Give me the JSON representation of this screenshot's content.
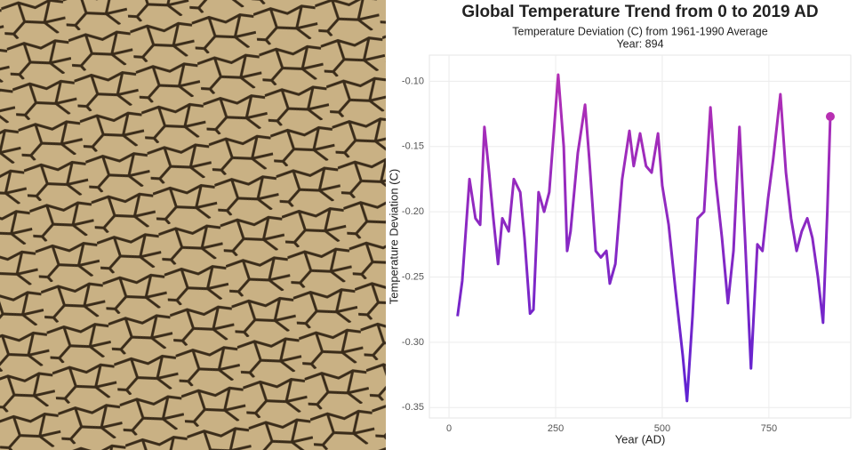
{
  "chart_data": {
    "type": "line",
    "title": "Global Temperature Trend from 0 to 2019 AD",
    "subtitle": "Temperature Deviation (C) from 1961-1990 Average",
    "annotation": "Year:  894",
    "xlabel": "Year (AD)",
    "ylabel": "Temperature Deviation (C)",
    "x": [
      20,
      31,
      48,
      62,
      73,
      83,
      94,
      104,
      115,
      125,
      140,
      152,
      167,
      177,
      190,
      198,
      210,
      223,
      235,
      256,
      269,
      277,
      285,
      302,
      319,
      329,
      344,
      356,
      369,
      377,
      390,
      406,
      423,
      433,
      448,
      462,
      475,
      490,
      500,
      515,
      531,
      548,
      558,
      571,
      583,
      598,
      613,
      625,
      640,
      654,
      667,
      681,
      694,
      708,
      723,
      735,
      748,
      760,
      777,
      790,
      802,
      815,
      827,
      840,
      852,
      865,
      877,
      887,
      894
    ],
    "values": [
      -0.28,
      -0.253,
      -0.175,
      -0.205,
      -0.21,
      -0.135,
      -0.17,
      -0.205,
      -0.24,
      -0.205,
      -0.215,
      -0.175,
      -0.185,
      -0.22,
      -0.278,
      -0.275,
      -0.185,
      -0.2,
      -0.185,
      -0.095,
      -0.15,
      -0.23,
      -0.215,
      -0.155,
      -0.118,
      -0.16,
      -0.23,
      -0.235,
      -0.23,
      -0.255,
      -0.24,
      -0.175,
      -0.138,
      -0.165,
      -0.14,
      -0.165,
      -0.17,
      -0.14,
      -0.18,
      -0.21,
      -0.26,
      -0.31,
      -0.345,
      -0.28,
      -0.205,
      -0.2,
      -0.12,
      -0.175,
      -0.22,
      -0.27,
      -0.23,
      -0.135,
      -0.22,
      -0.32,
      -0.225,
      -0.23,
      -0.19,
      -0.16,
      -0.11,
      -0.17,
      -0.205,
      -0.23,
      -0.215,
      -0.205,
      -0.22,
      -0.25,
      -0.285,
      -0.2,
      -0.127
    ],
    "gradient": [
      "#5a22d4",
      "#b82fb2"
    ],
    "xlim": [
      -46,
      942
    ],
    "ylim": [
      -0.358,
      -0.08
    ],
    "xticks": [
      0,
      250,
      500,
      750
    ],
    "yticks": [
      -0.35,
      {
        "value": -0.3,
        "label": "-0.30"
      },
      -0.25,
      {
        "value": -0.2,
        "label": "-0.20"
      },
      -0.15,
      {
        "value": -0.1,
        "label": "-0.10"
      }
    ],
    "grid": true
  }
}
